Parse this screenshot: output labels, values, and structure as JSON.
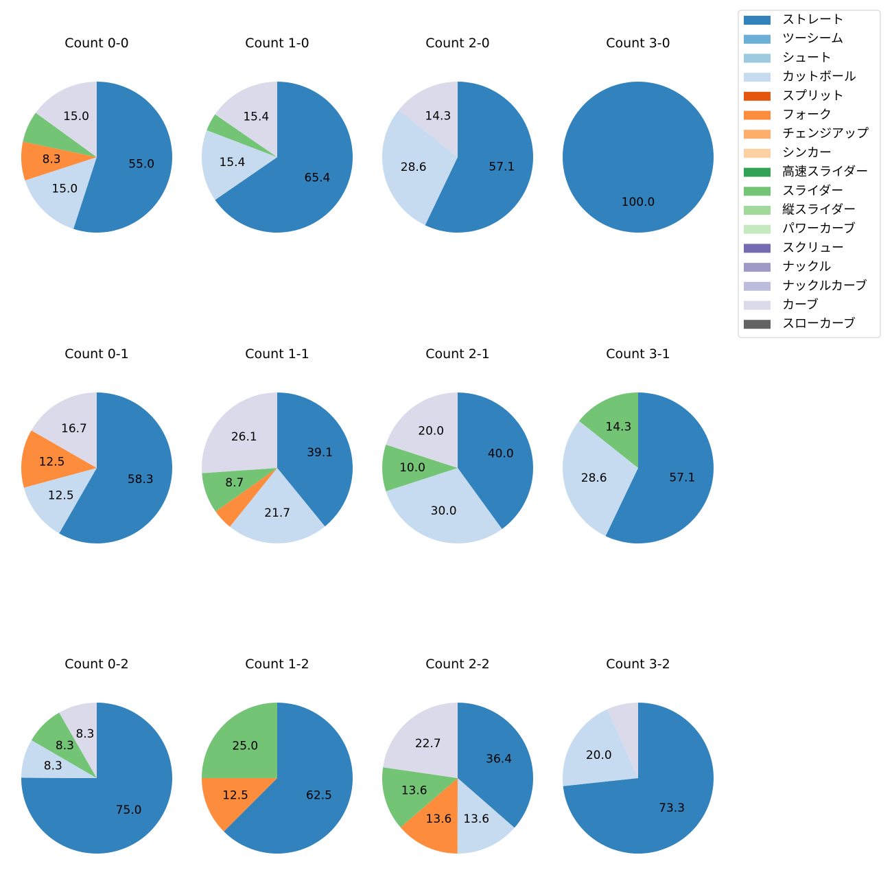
{
  "legend": [
    {
      "name": "ストレート",
      "color": "#3182bd"
    },
    {
      "name": "ツーシーム",
      "color": "#6baed6"
    },
    {
      "name": "シュート",
      "color": "#9ecae1"
    },
    {
      "name": "カットボール",
      "color": "#c6dbef"
    },
    {
      "name": "スプリット",
      "color": "#e6550d"
    },
    {
      "name": "フォーク",
      "color": "#fd8d3c"
    },
    {
      "name": "チェンジアップ",
      "color": "#fdae6b"
    },
    {
      "name": "シンカー",
      "color": "#fdd0a2"
    },
    {
      "name": "高速スライダー",
      "color": "#31a354"
    },
    {
      "name": "スライダー",
      "color": "#74c476"
    },
    {
      "name": "縦スライダー",
      "color": "#a1d99b"
    },
    {
      "name": "パワーカーブ",
      "color": "#c7e9c0"
    },
    {
      "name": "スクリュー",
      "color": "#756bb1"
    },
    {
      "name": "ナックル",
      "color": "#9e9ac8"
    },
    {
      "name": "ナックルカーブ",
      "color": "#bcbddc"
    },
    {
      "name": "カーブ",
      "color": "#dadaeb"
    },
    {
      "name": "スローカーブ",
      "color": "#636363"
    }
  ],
  "chart_data": [
    {
      "type": "pie",
      "title": "Count 0-0",
      "slices": [
        {
          "pitch": "ストレート",
          "value": 55.0,
          "label": "55.0"
        },
        {
          "pitch": "カットボール",
          "value": 15.0,
          "label": "15.0"
        },
        {
          "pitch": "フォーク",
          "value": 8.3,
          "label": "8.3"
        },
        {
          "pitch": "スライダー",
          "value": 6.7,
          "label": ""
        },
        {
          "pitch": "カーブ",
          "value": 15.0,
          "label": "15.0"
        }
      ]
    },
    {
      "type": "pie",
      "title": "Count 1-0",
      "slices": [
        {
          "pitch": "ストレート",
          "value": 65.4,
          "label": "65.4"
        },
        {
          "pitch": "カットボール",
          "value": 15.4,
          "label": "15.4"
        },
        {
          "pitch": "スライダー",
          "value": 3.8,
          "label": ""
        },
        {
          "pitch": "カーブ",
          "value": 15.4,
          "label": "15.4"
        }
      ]
    },
    {
      "type": "pie",
      "title": "Count 2-0",
      "slices": [
        {
          "pitch": "ストレート",
          "value": 57.1,
          "label": "57.1"
        },
        {
          "pitch": "カットボール",
          "value": 28.6,
          "label": "28.6"
        },
        {
          "pitch": "カーブ",
          "value": 14.3,
          "label": "14.3"
        }
      ]
    },
    {
      "type": "pie",
      "title": "Count 3-0",
      "slices": [
        {
          "pitch": "ストレート",
          "value": 100.0,
          "label": "100.0"
        }
      ]
    },
    {
      "type": "pie",
      "title": "Count 0-1",
      "slices": [
        {
          "pitch": "ストレート",
          "value": 58.3,
          "label": "58.3"
        },
        {
          "pitch": "カットボール",
          "value": 12.5,
          "label": "12.5"
        },
        {
          "pitch": "フォーク",
          "value": 12.5,
          "label": "12.5"
        },
        {
          "pitch": "カーブ",
          "value": 16.7,
          "label": "16.7"
        }
      ]
    },
    {
      "type": "pie",
      "title": "Count 1-1",
      "slices": [
        {
          "pitch": "ストレート",
          "value": 39.1,
          "label": "39.1"
        },
        {
          "pitch": "カットボール",
          "value": 21.7,
          "label": "21.7"
        },
        {
          "pitch": "フォーク",
          "value": 4.4,
          "label": ""
        },
        {
          "pitch": "スライダー",
          "value": 8.7,
          "label": "8.7"
        },
        {
          "pitch": "カーブ",
          "value": 26.1,
          "label": "26.1"
        }
      ]
    },
    {
      "type": "pie",
      "title": "Count 2-1",
      "slices": [
        {
          "pitch": "ストレート",
          "value": 40.0,
          "label": "40.0"
        },
        {
          "pitch": "カットボール",
          "value": 30.0,
          "label": "30.0"
        },
        {
          "pitch": "スライダー",
          "value": 10.0,
          "label": "10.0"
        },
        {
          "pitch": "カーブ",
          "value": 20.0,
          "label": "20.0"
        }
      ]
    },
    {
      "type": "pie",
      "title": "Count 3-1",
      "slices": [
        {
          "pitch": "ストレート",
          "value": 57.1,
          "label": "57.1"
        },
        {
          "pitch": "カットボール",
          "value": 28.6,
          "label": "28.6"
        },
        {
          "pitch": "スライダー",
          "value": 14.3,
          "label": "14.3"
        }
      ]
    },
    {
      "type": "pie",
      "title": "Count 0-2",
      "slices": [
        {
          "pitch": "ストレート",
          "value": 75.0,
          "label": "75.0"
        },
        {
          "pitch": "カットボール",
          "value": 8.3,
          "label": "8.3"
        },
        {
          "pitch": "スライダー",
          "value": 8.3,
          "label": "8.3"
        },
        {
          "pitch": "カーブ",
          "value": 8.3,
          "label": "8.3"
        }
      ]
    },
    {
      "type": "pie",
      "title": "Count 1-2",
      "slices": [
        {
          "pitch": "ストレート",
          "value": 62.5,
          "label": "62.5"
        },
        {
          "pitch": "フォーク",
          "value": 12.5,
          "label": "12.5"
        },
        {
          "pitch": "スライダー",
          "value": 25.0,
          "label": "25.0"
        }
      ]
    },
    {
      "type": "pie",
      "title": "Count 2-2",
      "slices": [
        {
          "pitch": "ストレート",
          "value": 36.4,
          "label": "36.4"
        },
        {
          "pitch": "カットボール",
          "value": 13.6,
          "label": "13.6"
        },
        {
          "pitch": "フォーク",
          "value": 13.6,
          "label": "13.6"
        },
        {
          "pitch": "スライダー",
          "value": 13.6,
          "label": "13.6"
        },
        {
          "pitch": "カーブ",
          "value": 22.7,
          "label": "22.7"
        }
      ]
    },
    {
      "type": "pie",
      "title": "Count 3-2",
      "slices": [
        {
          "pitch": "ストレート",
          "value": 73.3,
          "label": "73.3"
        },
        {
          "pitch": "カットボール",
          "value": 20.0,
          "label": "20.0"
        },
        {
          "pitch": "カーブ",
          "value": 6.7,
          "label": ""
        }
      ]
    }
  ]
}
